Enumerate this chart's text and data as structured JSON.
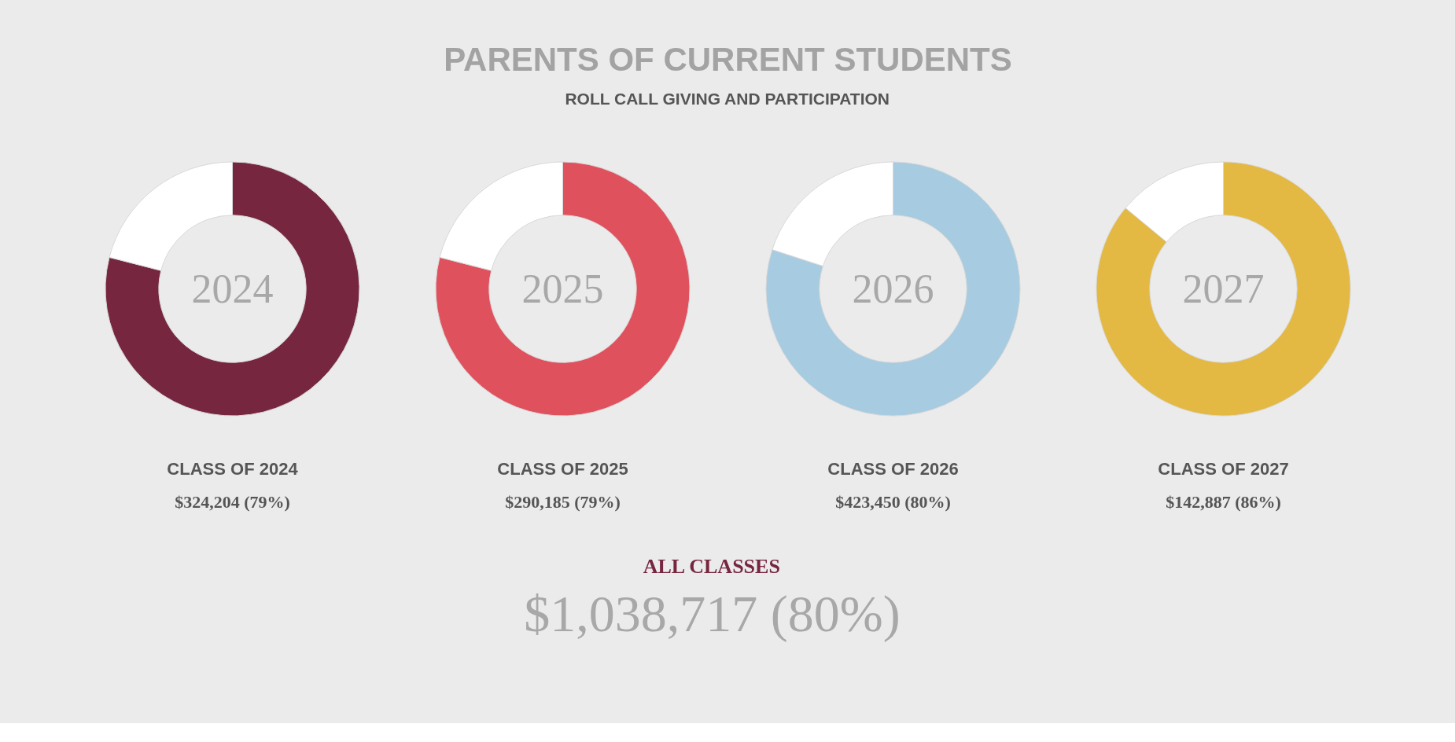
{
  "chart_data": [
    {
      "type": "donut",
      "title": "CLASS OF 2024",
      "categories": [
        null,
        null
      ],
      "values": [
        79,
        21
      ],
      "colors": [
        "#76263f",
        "#ffffff"
      ],
      "annotations": [
        "PARENTS OF CURRENT STUDENTS",
        "ROLL CALL GIVING AND PARTICIPATION",
        "2024",
        "$324,204 (79%)",
        "ALL CLASSES",
        "$1,038,717 (80%)"
      ]
    },
    {
      "type": "donut",
      "title": "CLASS OF 2025",
      "categories": [
        null,
        null
      ],
      "values": [
        79,
        21
      ],
      "colors": [
        "#e0515e",
        "#ffffff"
      ],
      "annotations": [
        "2025",
        "$290,185 (79%)"
      ]
    },
    {
      "type": "donut",
      "title": "CLASS OF 2026",
      "categories": [
        null,
        null
      ],
      "values": [
        80,
        20
      ],
      "colors": [
        "#a7cbe0",
        "#ffffff"
      ],
      "annotations": [
        "2026",
        "$423,450 (80%)"
      ]
    },
    {
      "type": "donut",
      "title": "CLASS OF 2027",
      "categories": [
        null,
        null
      ],
      "values": [
        86,
        14
      ],
      "colors": [
        "#e3b944",
        "#ffffff"
      ],
      "annotations": [
        "2027",
        "$142,887 (86%)"
      ]
    }
  ]
}
